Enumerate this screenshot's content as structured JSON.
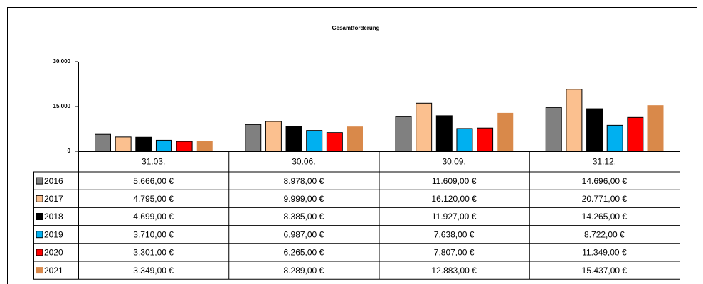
{
  "chart_data": {
    "type": "bar",
    "title": "Gesamtförderung",
    "categories": [
      "31.03.",
      "30.06.",
      "30.09.",
      "31.12."
    ],
    "ylim": [
      0,
      30000
    ],
    "yticks": [
      0,
      {
        "value": 15000,
        "label": "15.000"
      },
      {
        "value": 30000,
        "label": "30.000"
      }
    ],
    "series": [
      {
        "name": "2016",
        "color": "#808080",
        "values": [
          5666,
          8978,
          11609,
          14696
        ],
        "value_labels": [
          "5.666,00 €",
          "8.978,00 €",
          "11.609,00 €",
          "14.696,00 €"
        ]
      },
      {
        "name": "2017",
        "color": "#fbc08f",
        "values": [
          4795,
          9999,
          16120,
          20771
        ],
        "value_labels": [
          "4.795,00 €",
          "9.999,00 €",
          "16.120,00 €",
          "20.771,00 €"
        ]
      },
      {
        "name": "2018",
        "color": "#000000",
        "values": [
          4699,
          8385,
          11927,
          14265
        ],
        "value_labels": [
          "4.699,00 €",
          "8.385,00 €",
          "11.927,00 €",
          "14.265,00 €"
        ]
      },
      {
        "name": "2019",
        "color": "#00b0f0",
        "values": [
          3710,
          6987,
          7638,
          8722
        ],
        "value_labels": [
          "3.710,00 €",
          "6.987,00 €",
          "7.638,00 €",
          "8.722,00 €"
        ]
      },
      {
        "name": "2020",
        "color": "#ff0000",
        "values": [
          3301,
          6265,
          7807,
          11349
        ],
        "value_labels": [
          "3.301,00 €",
          "6.265,00 €",
          "7.807,00 €",
          "11.349,00 €"
        ]
      },
      {
        "name": "2021",
        "color": "#d9894a",
        "values": [
          3349,
          8289,
          12883,
          15437
        ],
        "value_labels": [
          "3.349,00 €",
          "8.289,00 €",
          "12.883,00 €",
          "15.437,00 €"
        ]
      }
    ]
  }
}
